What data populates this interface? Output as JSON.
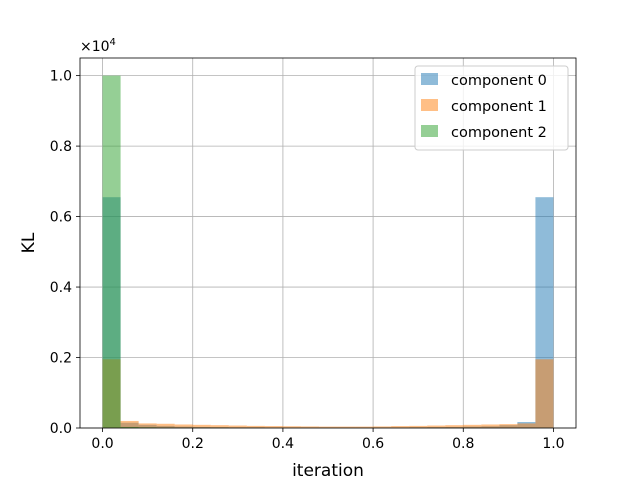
{
  "chart_data": {
    "type": "bar",
    "subtype": "overlaid-histogram",
    "xlabel": "iteration",
    "ylabel": "KL",
    "y_offset_label": "×10",
    "y_offset_exponent": "4",
    "xlim": [
      -0.05,
      1.05
    ],
    "ylim": [
      0,
      10500
    ],
    "bin_width": 0.04,
    "bin_starts": [
      0.0,
      0.04,
      0.08,
      0.12,
      0.16,
      0.2,
      0.24,
      0.28,
      0.32,
      0.36,
      0.4,
      0.44,
      0.48,
      0.52,
      0.56,
      0.6,
      0.64,
      0.68,
      0.72,
      0.76,
      0.8,
      0.84,
      0.88,
      0.92,
      0.96
    ],
    "x_ticks": [
      {
        "value": 0.0,
        "label": "0.0"
      },
      {
        "value": 0.2,
        "label": "0.2"
      },
      {
        "value": 0.4,
        "label": "0.4"
      },
      {
        "value": 0.6,
        "label": "0.6"
      },
      {
        "value": 0.8,
        "label": "0.8"
      },
      {
        "value": 1.0,
        "label": "1.0"
      }
    ],
    "y_ticks": [
      {
        "value": 0,
        "label": "0.0"
      },
      {
        "value": 2000,
        "label": "0.2"
      },
      {
        "value": 4000,
        "label": "0.4"
      },
      {
        "value": 6000,
        "label": "0.6"
      },
      {
        "value": 8000,
        "label": "0.8"
      },
      {
        "value": 10000,
        "label": "1.0"
      }
    ],
    "grid": true,
    "legend_position": "top-right",
    "series": [
      {
        "name": "component 0",
        "color": "#1f77b4",
        "values": [
          6550,
          150,
          90,
          60,
          40,
          30,
          25,
          20,
          20,
          15,
          10,
          10,
          10,
          10,
          10,
          15,
          15,
          20,
          25,
          30,
          40,
          50,
          80,
          170,
          6550
        ]
      },
      {
        "name": "component 1",
        "color": "#ff7f0e",
        "values": [
          1950,
          200,
          130,
          120,
          100,
          90,
          80,
          70,
          60,
          55,
          50,
          45,
          40,
          40,
          40,
          45,
          55,
          60,
          70,
          80,
          90,
          100,
          110,
          130,
          1950
        ]
      },
      {
        "name": "component 2",
        "color": "#2ca02c",
        "values": [
          10000,
          30,
          20,
          15,
          10,
          10,
          10,
          5,
          5,
          5,
          5,
          5,
          5,
          5,
          5,
          5,
          5,
          5,
          5,
          5,
          5,
          5,
          5,
          5,
          5
        ]
      }
    ]
  }
}
